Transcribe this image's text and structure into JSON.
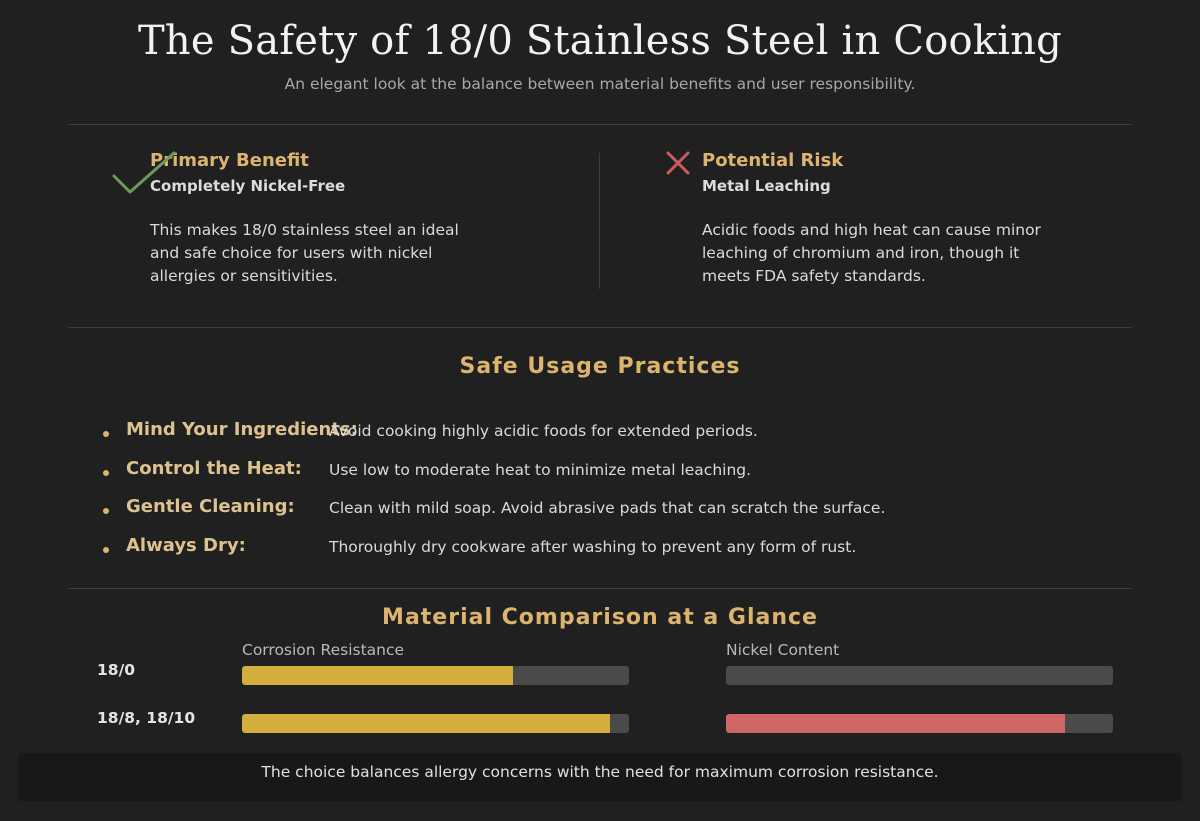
{
  "header": {
    "title": "The Safety of 18/0 Stainless Steel in Cooking",
    "subtitle": "An elegant look at the balance between material benefits and user responsibility."
  },
  "benefit": {
    "icon": "checkmark-icon",
    "heading": "Primary Benefit",
    "subheading": "Completely Nickel-Free",
    "body": "This makes 18/0 stainless steel an ideal and safe choice for users with nickel allergies or sensitivities."
  },
  "risk": {
    "icon": "x-mark-icon",
    "heading": "Potential Risk",
    "subheading": "Metal Leaching",
    "body": "Acidic foods and high heat can cause minor leaching of chromium and iron, though it meets FDA safety standards."
  },
  "practices": {
    "title": "Safe Usage Practices",
    "items": [
      {
        "label": "Mind Your Ingredients:",
        "text": "Avoid cooking highly acidic foods for extended periods."
      },
      {
        "label": "Control the Heat:",
        "text": "Use low to moderate heat to minimize metal leaching."
      },
      {
        "label": "Gentle Cleaning:",
        "text": "Clean with mild soap. Avoid abrasive pads that can scratch the surface."
      },
      {
        "label": "Always Dry:",
        "text": "Thoroughly dry cookware after washing to prevent any form of rust."
      }
    ]
  },
  "comparison": {
    "title": "Material Comparison at a Glance",
    "columns": [
      "Corrosion Resistance",
      "Nickel Content"
    ],
    "rows": [
      {
        "label": "18/0",
        "corrosion": 0.7,
        "nickel": 0.0
      },
      {
        "label": "18/8, 18/10",
        "corrosion": 0.95,
        "nickel": 0.875
      }
    ],
    "colors": {
      "corrosion": "#d4ae3c",
      "nickel": "#d06565",
      "track": "#4a4a4a"
    }
  },
  "footer": {
    "text": "The choice balances allergy concerns with the need for maximum corrosion resistance."
  },
  "colors": {
    "background": "#202020",
    "accent": "#dcb46e"
  }
}
